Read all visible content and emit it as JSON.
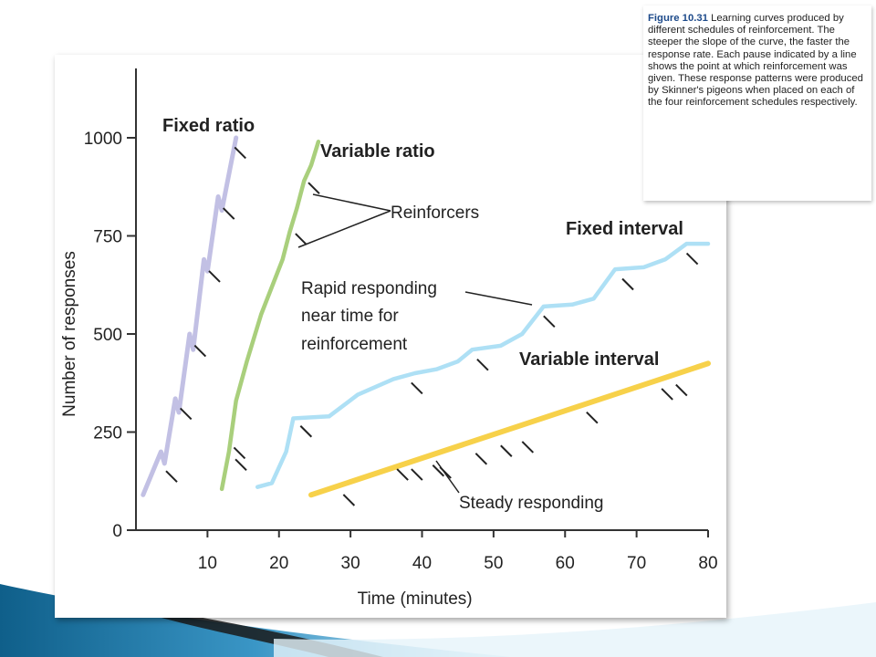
{
  "caption": {
    "label": "Figure 10.31",
    "text": "Learning curves produced by different schedules of reinforcement. The steeper the slope of the curve, the faster the response rate. Each pause indicated by a line shows the point at which reinforcement was given. These response patterns were produced by Skinner's pigeons when placed on each of the four reinforcement schedules respectively."
  },
  "colors": {
    "fixed_ratio": "#c2c0e4",
    "variable_ratio": "#a9cf7c",
    "fixed_interval": "#aee0f5",
    "variable_interval": "#f7d14a",
    "slide_accent": "#1b75a6"
  },
  "chart_data": {
    "type": "line",
    "title": "",
    "xlabel": "Time (minutes)",
    "ylabel": "Number of responses",
    "xlim": [
      0,
      80
    ],
    "ylim": [
      0,
      1150
    ],
    "x_ticks": [
      "10",
      "20",
      "30",
      "40",
      "50",
      "60",
      "70",
      "80"
    ],
    "y_ticks": [
      "0",
      "250",
      "500",
      "750",
      "1000"
    ],
    "grid": false,
    "series": [
      {
        "name": "Fixed ratio",
        "key": "fixed_ratio",
        "points": [
          [
            1,
            90
          ],
          [
            3.5,
            200
          ],
          [
            4,
            170
          ],
          [
            5.5,
            335
          ],
          [
            6,
            300
          ],
          [
            7.5,
            500
          ],
          [
            8,
            460
          ],
          [
            9.5,
            690
          ],
          [
            10,
            660
          ],
          [
            11.5,
            850
          ],
          [
            12,
            815
          ],
          [
            14,
            1000
          ]
        ],
        "reinforcers": [
          [
            3.7,
            160
          ],
          [
            5.7,
            320
          ],
          [
            7.7,
            480
          ],
          [
            9.7,
            670
          ],
          [
            11.7,
            830
          ],
          [
            13.3,
            985
          ]
        ]
      },
      {
        "name": "Variable ratio",
        "key": "variable_ratio",
        "points": [
          [
            12,
            105
          ],
          [
            13,
            200
          ],
          [
            14,
            330
          ],
          [
            15.5,
            430
          ],
          [
            17.5,
            550
          ],
          [
            20.5,
            690
          ],
          [
            21.5,
            760
          ],
          [
            22.5,
            820
          ],
          [
            23.5,
            890
          ],
          [
            24.5,
            930
          ],
          [
            25.5,
            990
          ]
        ],
        "reinforcers": [
          [
            13.2,
            220
          ],
          [
            13.4,
            190
          ],
          [
            21.8,
            765
          ],
          [
            23.6,
            895
          ]
        ]
      },
      {
        "name": "Fixed interval",
        "key": "fixed_interval",
        "points": [
          [
            17,
            110
          ],
          [
            19,
            120
          ],
          [
            21,
            200
          ],
          [
            22,
            285
          ],
          [
            27,
            290
          ],
          [
            31,
            345
          ],
          [
            36,
            385
          ],
          [
            39,
            400
          ],
          [
            42,
            410
          ],
          [
            45,
            430
          ],
          [
            47,
            460
          ],
          [
            51,
            470
          ],
          [
            54,
            500
          ],
          [
            57,
            570
          ],
          [
            61,
            575
          ],
          [
            64,
            590
          ],
          [
            67,
            665
          ],
          [
            71,
            670
          ],
          [
            74,
            690
          ],
          [
            77,
            730
          ],
          [
            80,
            730
          ]
        ],
        "reinforcers": [
          [
            22.5,
            275
          ],
          [
            38,
            385
          ],
          [
            47.2,
            445
          ],
          [
            56.5,
            555
          ],
          [
            67.5,
            650
          ],
          [
            76.5,
            715
          ]
        ]
      },
      {
        "name": "Variable interval",
        "key": "variable_interval",
        "points": [
          [
            24.5,
            90
          ],
          [
            80,
            425
          ]
        ],
        "reinforcers": [
          [
            28.5,
            100
          ],
          [
            36,
            165
          ],
          [
            38,
            165
          ],
          [
            41,
            175
          ],
          [
            42,
            170
          ],
          [
            47,
            205
          ],
          [
            50.5,
            225
          ],
          [
            53.5,
            235
          ],
          [
            62.5,
            310
          ],
          [
            73,
            370
          ],
          [
            75,
            380
          ]
        ]
      }
    ],
    "annotations": [
      {
        "text": "Reinforcers"
      },
      {
        "text": "Rapid responding"
      },
      {
        "text": "near time for"
      },
      {
        "text": "reinforcement"
      },
      {
        "text": "Steady responding"
      }
    ]
  }
}
